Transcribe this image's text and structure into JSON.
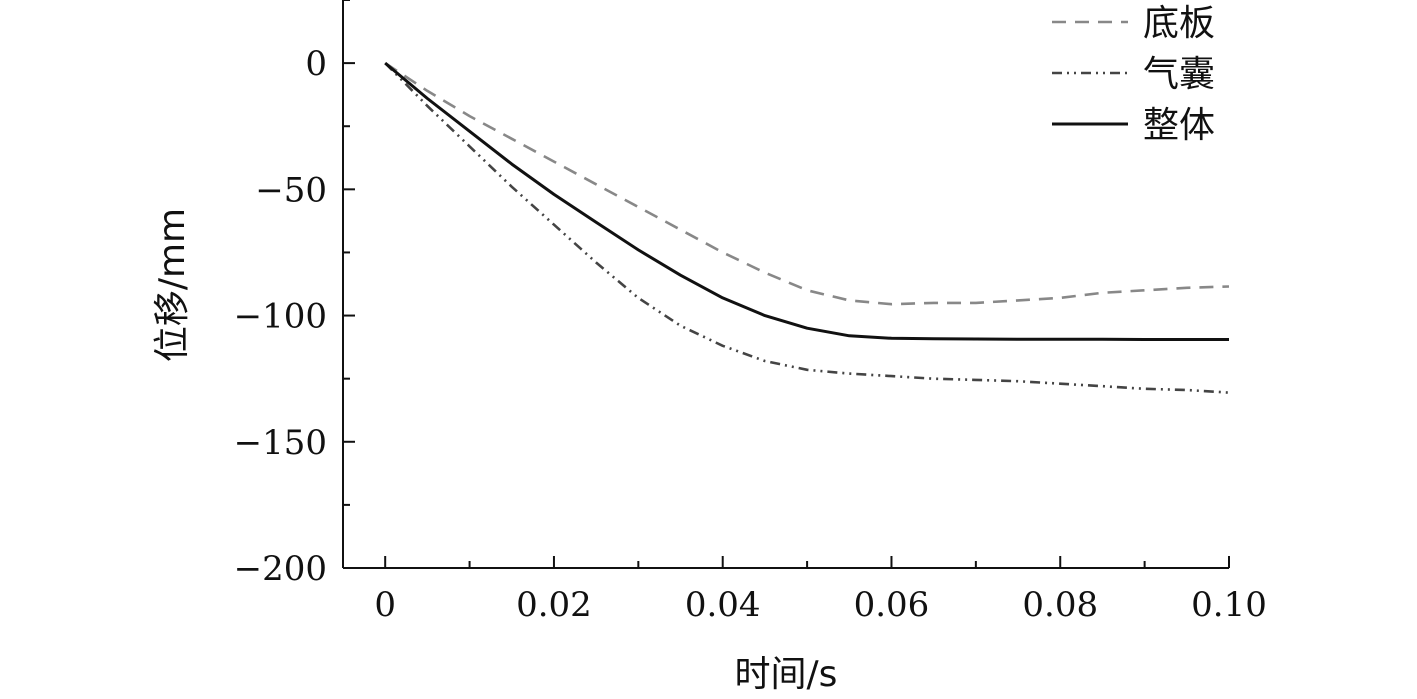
{
  "chart_data": {
    "type": "line",
    "title": "",
    "xlabel": "时间/s",
    "ylabel": "位移/mm",
    "xlim": [
      -0.005,
      0.1
    ],
    "ylim": [
      -200,
      25
    ],
    "xticks": [
      0,
      0.02,
      0.04,
      0.06,
      0.08,
      0.1
    ],
    "xtick_labels": [
      "0",
      "0.02",
      "0.04",
      "0.06",
      "0.08",
      "0.10"
    ],
    "yticks": [
      0,
      -50,
      -100,
      -150,
      -200
    ],
    "ytick_labels": [
      "0",
      "−50",
      "−100",
      "−150",
      "−200"
    ],
    "grid": false,
    "legend_position": "top-right",
    "series": [
      {
        "name": "底板",
        "color": "#888888",
        "style": "dashed",
        "x": [
          0,
          0.005,
          0.01,
          0.015,
          0.02,
          0.025,
          0.03,
          0.035,
          0.04,
          0.045,
          0.05,
          0.055,
          0.06,
          0.065,
          0.07,
          0.075,
          0.08,
          0.085,
          0.09,
          0.095,
          0.1
        ],
        "y": [
          0,
          -11,
          -21,
          -30,
          -39,
          -48,
          -57,
          -66,
          -75,
          -83,
          -90,
          -94,
          -95.5,
          -95,
          -95,
          -94,
          -93,
          -91,
          -90,
          -89,
          -88.5
        ]
      },
      {
        "name": "气囊",
        "color": "#444444",
        "style": "dashdotdot",
        "x": [
          0,
          0.005,
          0.01,
          0.015,
          0.02,
          0.025,
          0.03,
          0.035,
          0.04,
          0.045,
          0.05,
          0.055,
          0.06,
          0.065,
          0.07,
          0.075,
          0.08,
          0.085,
          0.09,
          0.095,
          0.1
        ],
        "y": [
          0,
          -17,
          -33,
          -49,
          -64,
          -79,
          -93,
          -104,
          -112,
          -118,
          -121.5,
          -123,
          -124,
          -125,
          -125.5,
          -126,
          -127,
          -128,
          -129,
          -129.5,
          -130.5
        ]
      },
      {
        "name": "整体",
        "color": "#111111",
        "style": "solid",
        "x": [
          0,
          0.005,
          0.01,
          0.015,
          0.02,
          0.025,
          0.03,
          0.035,
          0.04,
          0.045,
          0.05,
          0.055,
          0.06,
          0.065,
          0.07,
          0.075,
          0.08,
          0.085,
          0.09,
          0.095,
          0.1
        ],
        "y": [
          0,
          -14,
          -27,
          -40,
          -52,
          -63,
          -74,
          -84,
          -93,
          -100,
          -105,
          -108,
          -109,
          -109.2,
          -109.3,
          -109.4,
          -109.4,
          -109.4,
          -109.5,
          -109.5,
          -109.5
        ]
      }
    ]
  }
}
